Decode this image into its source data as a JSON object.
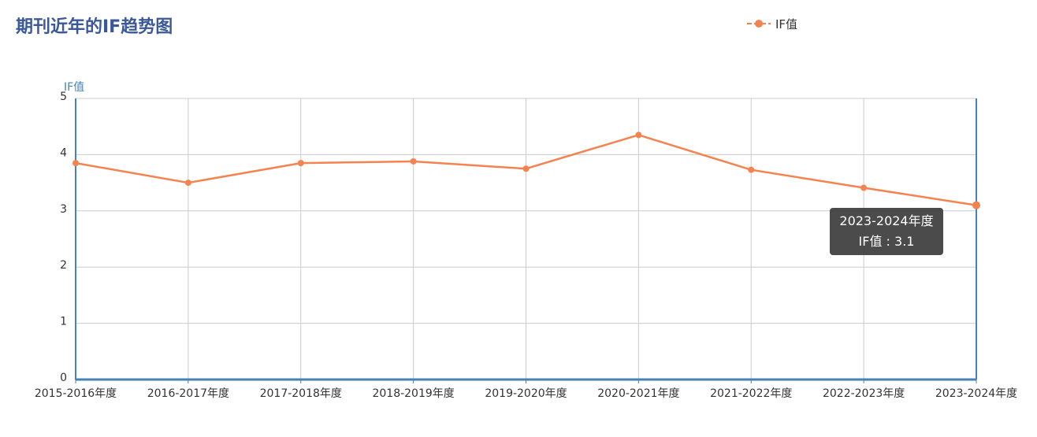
{
  "title": "期刊近年的IF趋势图",
  "legend": {
    "label": "IF值"
  },
  "tooltip": {
    "category": "2023-2024年度",
    "text": "IF值 : 3.1"
  },
  "colors": {
    "line": "#f58350",
    "axis": "#4682b4",
    "grid": "#cccccc",
    "title": "#3b5998"
  },
  "chart_data": {
    "type": "line",
    "title": "期刊近年的IF趋势图",
    "ylabel": "IF值",
    "xlabel": "",
    "ylim": [
      0,
      5
    ],
    "yticks": [
      0,
      1,
      2,
      3,
      4,
      5
    ],
    "grid": true,
    "legend_position": "top-right",
    "categories": [
      "2015-2016年度",
      "2016-2017年度",
      "2017-2018年度",
      "2018-2019年度",
      "2019-2020年度",
      "2020-2021年度",
      "2021-2022年度",
      "2022-2023年度",
      "2023-2024年度"
    ],
    "series": [
      {
        "name": "IF值",
        "values": [
          3.85,
          3.5,
          3.85,
          3.88,
          3.75,
          4.35,
          3.73,
          3.41,
          3.1
        ]
      }
    ]
  }
}
